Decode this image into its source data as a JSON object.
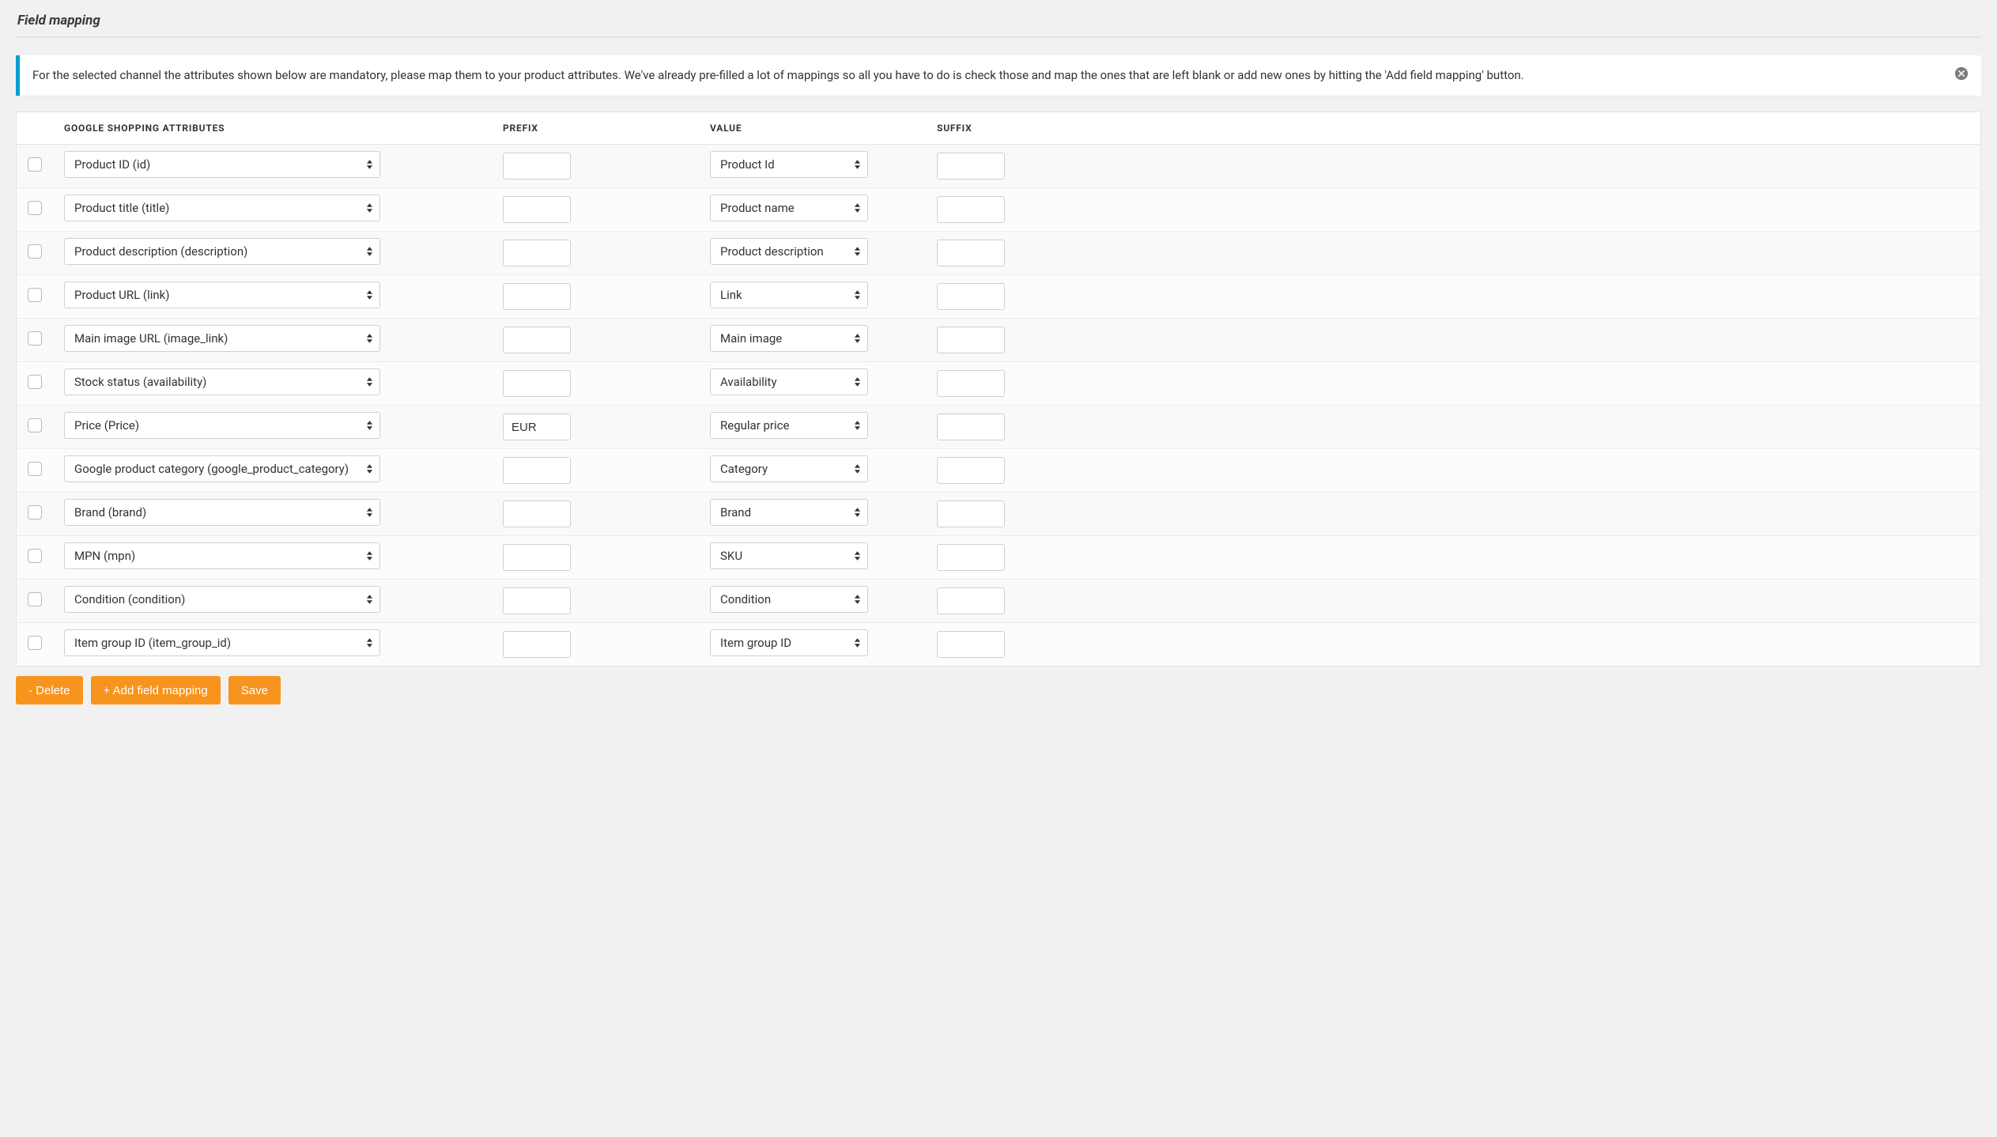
{
  "title": "Field mapping",
  "notice": {
    "text": "For the selected channel the attributes shown below are mandatory, please map them to your product attributes. We've already pre-filled a lot of mappings so all you have to do is check those and map the ones that are left blank or add new ones by hitting the 'Add field mapping' button."
  },
  "columns": {
    "checkbox": "",
    "attribute": "GOOGLE SHOPPING ATTRIBUTES",
    "prefix": "PREFIX",
    "value": "VALUE",
    "suffix": "SUFFIX"
  },
  "rows": [
    {
      "checked": false,
      "attribute": "Product ID (id)",
      "prefix": "",
      "value": "Product Id",
      "suffix": ""
    },
    {
      "checked": false,
      "attribute": "Product title (title)",
      "prefix": "",
      "value": "Product name",
      "suffix": ""
    },
    {
      "checked": false,
      "attribute": "Product description (description)",
      "prefix": "",
      "value": "Product description",
      "suffix": ""
    },
    {
      "checked": false,
      "attribute": "Product URL (link)",
      "prefix": "",
      "value": "Link",
      "suffix": ""
    },
    {
      "checked": false,
      "attribute": "Main image URL (image_link)",
      "prefix": "",
      "value": "Main image",
      "suffix": ""
    },
    {
      "checked": false,
      "attribute": "Stock status (availability)",
      "prefix": "",
      "value": "Availability",
      "suffix": ""
    },
    {
      "checked": false,
      "attribute": "Price (Price)",
      "prefix": "EUR",
      "value": "Regular price",
      "suffix": ""
    },
    {
      "checked": false,
      "attribute": "Google product category (google_product_category)",
      "prefix": "",
      "value": "Category",
      "suffix": ""
    },
    {
      "checked": false,
      "attribute": "Brand (brand)",
      "prefix": "",
      "value": "Brand",
      "suffix": ""
    },
    {
      "checked": false,
      "attribute": "MPN (mpn)",
      "prefix": "",
      "value": "SKU",
      "suffix": ""
    },
    {
      "checked": false,
      "attribute": "Condition (condition)",
      "prefix": "",
      "value": "Condition",
      "suffix": ""
    },
    {
      "checked": false,
      "attribute": "Item group ID (item_group_id)",
      "prefix": "",
      "value": "Item group ID",
      "suffix": ""
    }
  ],
  "buttons": {
    "delete": "- Delete",
    "add": "+ Add field mapping",
    "save": "Save"
  },
  "colors": {
    "accent": "#f7941d",
    "notice_border": "#00a0d2",
    "background": "#f1f1f1",
    "table_border": "#e3e3e3",
    "row_alt": "#fcfcfc",
    "row_bg": "#f9f9f9",
    "input_border": "#d0d0d0",
    "text": "#333333"
  }
}
